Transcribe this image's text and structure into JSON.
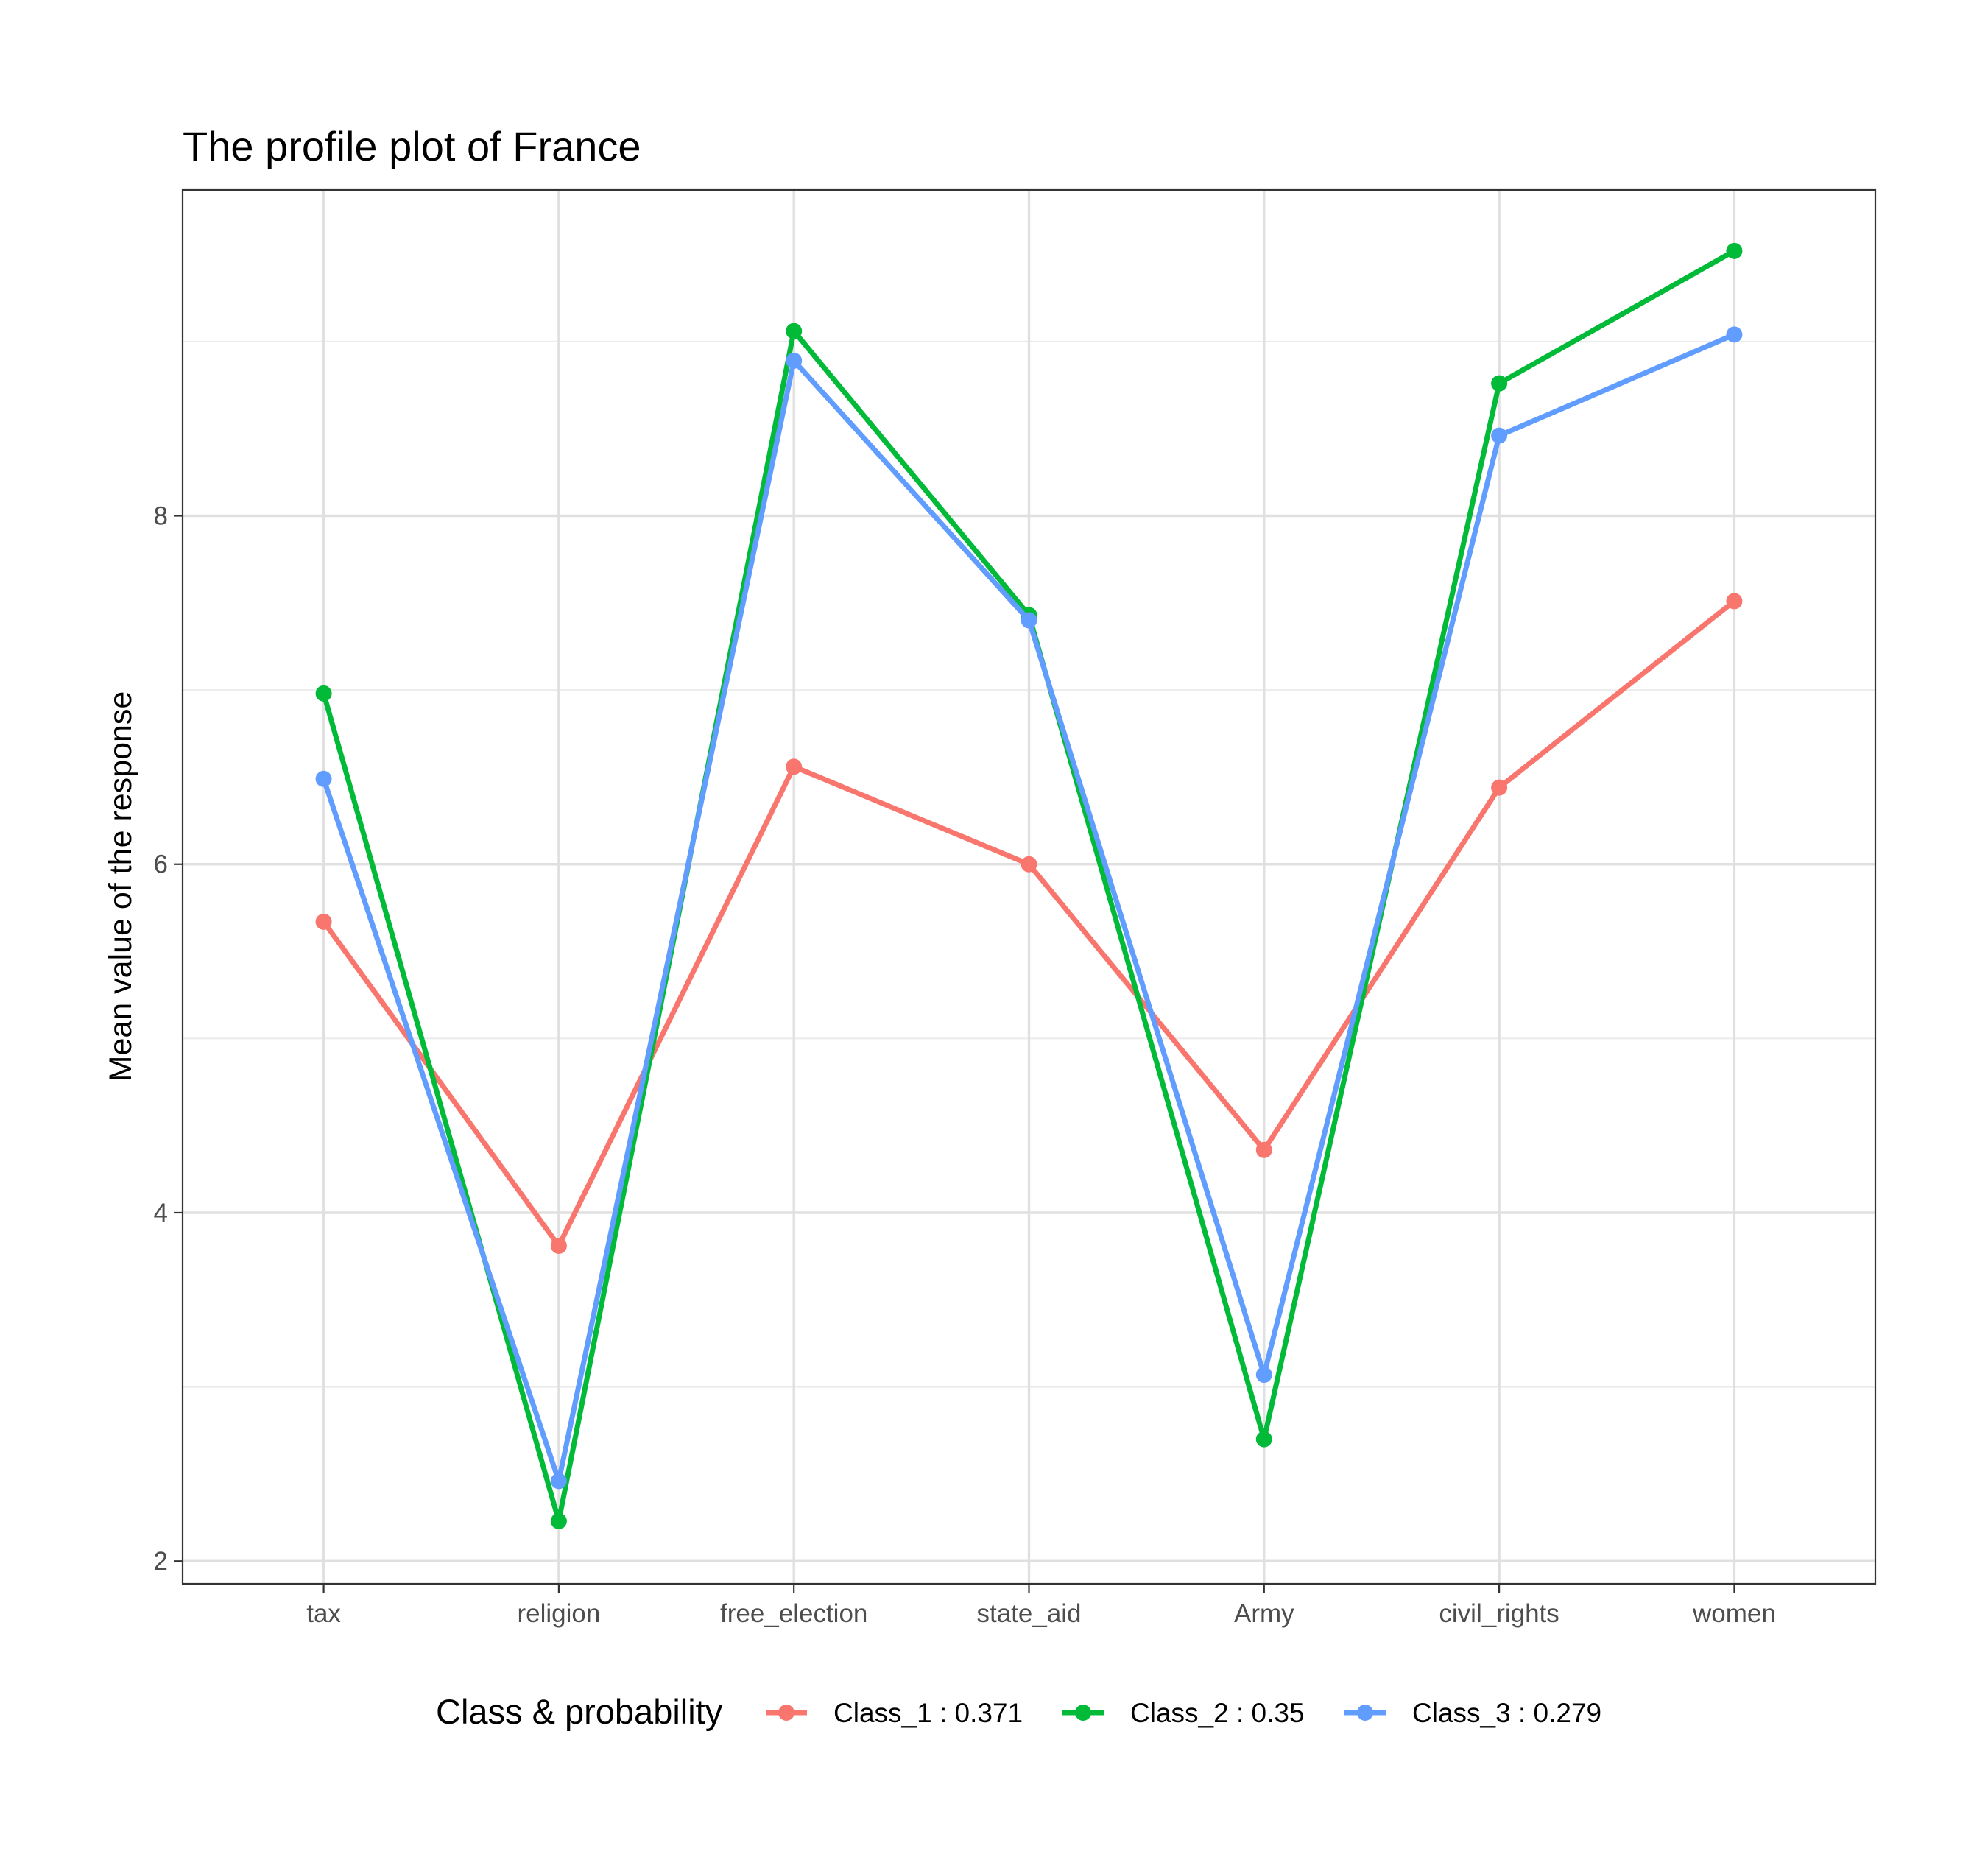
{
  "chart_data": {
    "type": "line",
    "title": "The profile plot of France",
    "xlabel": "",
    "ylabel": "Mean value of the response",
    "categories": [
      "tax",
      "religion",
      "free_election",
      "state_aid",
      "Army",
      "civil_rights",
      "women"
    ],
    "ylim": [
      1.87,
      9.87
    ],
    "yticks": [
      2,
      4,
      6,
      8
    ],
    "grid": true,
    "legend": {
      "title": "Class & probability",
      "position": "bottom"
    },
    "series": [
      {
        "name": "Class_1 : 0.371",
        "color": "#F8766D",
        "values": [
          5.67,
          3.81,
          6.56,
          6.0,
          4.36,
          6.44,
          7.51
        ]
      },
      {
        "name": "Class_2 : 0.35",
        "color": "#00BA38",
        "values": [
          6.98,
          2.23,
          9.06,
          7.43,
          2.7,
          8.76,
          9.52
        ]
      },
      {
        "name": "Class_3 : 0.279",
        "color": "#619CFF",
        "values": [
          6.49,
          2.46,
          8.89,
          7.4,
          3.07,
          8.46,
          9.04
        ]
      }
    ]
  }
}
